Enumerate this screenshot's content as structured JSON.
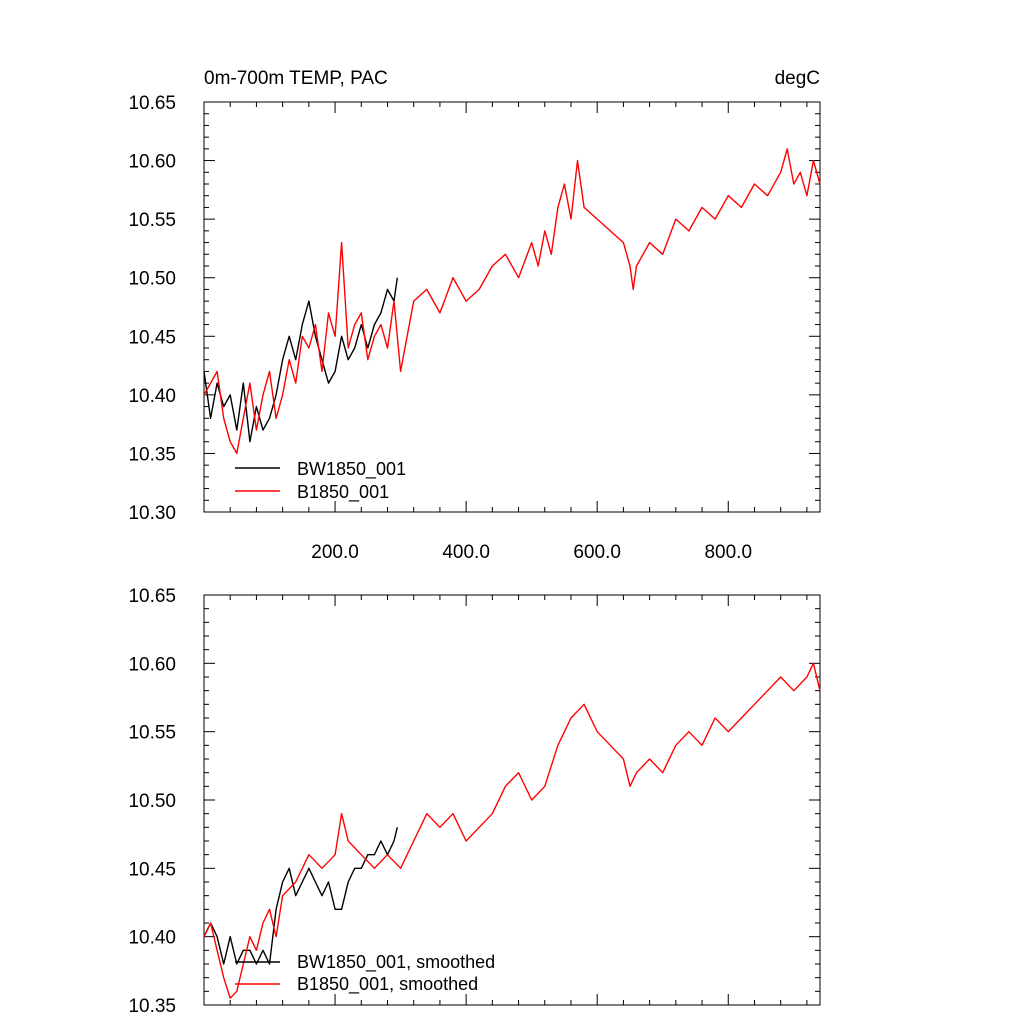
{
  "chart_data": [
    {
      "type": "line",
      "title_left": "0m-700m TEMP, PAC",
      "title_right": "degC",
      "xlim": [
        0,
        940
      ],
      "ylim": [
        10.3,
        10.65
      ],
      "xticks": [
        200,
        400,
        600,
        800
      ],
      "xtick_labels": [
        "200.0",
        "400.0",
        "600.0",
        "800.0"
      ],
      "yticks": [
        10.3,
        10.35,
        10.4,
        10.45,
        10.5,
        10.55,
        10.6,
        10.65
      ],
      "ytick_labels": [
        "10.30",
        "10.35",
        "10.40",
        "10.45",
        "10.50",
        "10.55",
        "10.60",
        "10.65"
      ],
      "series": [
        {
          "name": "BW1850_001",
          "color": "#000000",
          "x": [
            0,
            10,
            20,
            30,
            40,
            50,
            60,
            70,
            80,
            90,
            100,
            110,
            120,
            130,
            140,
            150,
            160,
            170,
            180,
            190,
            200,
            210,
            220,
            230,
            240,
            250,
            260,
            270,
            280,
            290,
            295
          ],
          "y": [
            10.42,
            10.38,
            10.41,
            10.39,
            10.4,
            10.37,
            10.41,
            10.36,
            10.39,
            10.37,
            10.38,
            10.4,
            10.43,
            10.45,
            10.43,
            10.46,
            10.48,
            10.45,
            10.43,
            10.41,
            10.42,
            10.45,
            10.43,
            10.44,
            10.46,
            10.44,
            10.46,
            10.47,
            10.49,
            10.48,
            10.5
          ]
        },
        {
          "name": "B1850_001",
          "color": "#ff0000",
          "x": [
            0,
            10,
            20,
            30,
            40,
            50,
            60,
            70,
            80,
            90,
            100,
            110,
            120,
            130,
            140,
            150,
            160,
            170,
            180,
            190,
            200,
            210,
            220,
            230,
            240,
            250,
            260,
            270,
            280,
            290,
            300,
            320,
            340,
            360,
            380,
            400,
            420,
            440,
            460,
            480,
            500,
            510,
            520,
            530,
            540,
            550,
            560,
            570,
            580,
            600,
            620,
            640,
            650,
            655,
            660,
            680,
            700,
            720,
            740,
            760,
            780,
            800,
            820,
            840,
            860,
            880,
            890,
            900,
            910,
            920,
            930,
            940
          ],
          "y": [
            10.4,
            10.41,
            10.42,
            10.38,
            10.36,
            10.35,
            10.38,
            10.41,
            10.37,
            10.4,
            10.42,
            10.38,
            10.4,
            10.43,
            10.41,
            10.45,
            10.44,
            10.46,
            10.42,
            10.47,
            10.45,
            10.53,
            10.44,
            10.46,
            10.47,
            10.43,
            10.45,
            10.46,
            10.44,
            10.48,
            10.42,
            10.48,
            10.49,
            10.47,
            10.5,
            10.48,
            10.49,
            10.51,
            10.52,
            10.5,
            10.53,
            10.51,
            10.54,
            10.52,
            10.56,
            10.58,
            10.55,
            10.6,
            10.56,
            10.55,
            10.54,
            10.53,
            10.51,
            10.49,
            10.51,
            10.53,
            10.52,
            10.55,
            10.54,
            10.56,
            10.55,
            10.57,
            10.56,
            10.58,
            10.57,
            10.59,
            10.61,
            10.58,
            10.59,
            10.57,
            10.6,
            10.58
          ]
        }
      ],
      "legend": [
        "BW1850_001",
        "B1850_001"
      ],
      "legend_position": "bottom-left"
    },
    {
      "type": "line",
      "xlim": [
        0,
        940
      ],
      "ylim": [
        10.35,
        10.65
      ],
      "xticks": [
        200,
        400,
        600,
        800
      ],
      "yticks": [
        10.35,
        10.4,
        10.45,
        10.5,
        10.55,
        10.6,
        10.65
      ],
      "ytick_labels": [
        "10.35",
        "10.40",
        "10.45",
        "10.50",
        "10.55",
        "10.60",
        "10.65"
      ],
      "series": [
        {
          "name": "BW1850_001, smoothed",
          "color": "#000000",
          "x": [
            0,
            10,
            20,
            30,
            40,
            50,
            60,
            70,
            80,
            90,
            100,
            110,
            120,
            130,
            140,
            150,
            160,
            170,
            180,
            190,
            200,
            210,
            220,
            230,
            240,
            250,
            260,
            270,
            280,
            290,
            295
          ],
          "y": [
            10.4,
            10.41,
            10.4,
            10.38,
            10.4,
            10.38,
            10.39,
            10.39,
            10.38,
            10.39,
            10.38,
            10.42,
            10.44,
            10.45,
            10.43,
            10.44,
            10.45,
            10.44,
            10.43,
            10.44,
            10.42,
            10.42,
            10.44,
            10.45,
            10.45,
            10.46,
            10.46,
            10.47,
            10.46,
            10.47,
            10.48
          ]
        },
        {
          "name": "B1850_001, smoothed",
          "color": "#ff0000",
          "x": [
            0,
            10,
            20,
            30,
            40,
            50,
            60,
            70,
            80,
            90,
            100,
            110,
            120,
            140,
            160,
            180,
            200,
            210,
            220,
            240,
            260,
            280,
            300,
            320,
            340,
            360,
            380,
            400,
            420,
            440,
            460,
            480,
            500,
            520,
            540,
            560,
            580,
            600,
            620,
            640,
            650,
            660,
            680,
            700,
            720,
            740,
            760,
            780,
            800,
            820,
            840,
            860,
            880,
            900,
            920,
            930,
            940
          ],
          "y": [
            10.4,
            10.41,
            10.39,
            10.37,
            10.355,
            10.36,
            10.38,
            10.4,
            10.39,
            10.41,
            10.42,
            10.4,
            10.43,
            10.44,
            10.46,
            10.45,
            10.46,
            10.49,
            10.47,
            10.46,
            10.45,
            10.46,
            10.45,
            10.47,
            10.49,
            10.48,
            10.49,
            10.47,
            10.48,
            10.49,
            10.51,
            10.52,
            10.5,
            10.51,
            10.54,
            10.56,
            10.57,
            10.55,
            10.54,
            10.53,
            10.51,
            10.52,
            10.53,
            10.52,
            10.54,
            10.55,
            10.54,
            10.56,
            10.55,
            10.56,
            10.57,
            10.58,
            10.59,
            10.58,
            10.59,
            10.6,
            10.58
          ]
        }
      ],
      "legend": [
        "BW1850_001, smoothed",
        "B1850_001, smoothed"
      ],
      "legend_position": "bottom-left"
    }
  ]
}
